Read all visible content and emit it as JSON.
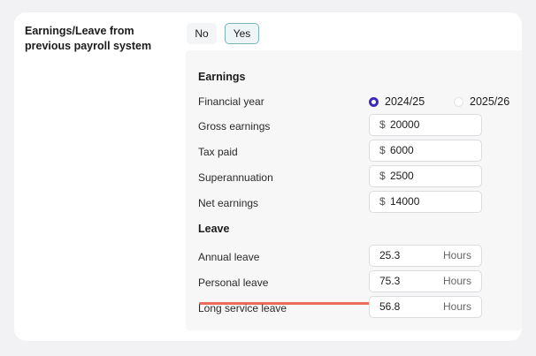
{
  "section": {
    "label": "Earnings/Leave from previous payroll system",
    "options": {
      "no": "No",
      "yes": "Yes"
    },
    "selected": "Yes"
  },
  "earnings": {
    "heading": "Earnings",
    "financial_year": {
      "label": "Financial year",
      "options": [
        "2024/25",
        "2025/26"
      ],
      "selected": "2024/25"
    },
    "currency_symbol": "$",
    "fields": [
      {
        "label": "Gross earnings",
        "value": "20000"
      },
      {
        "label": "Tax paid",
        "value": "6000"
      },
      {
        "label": "Superannuation",
        "value": "2500"
      },
      {
        "label": "Net earnings",
        "value": "14000"
      }
    ]
  },
  "leave": {
    "heading": "Leave",
    "unit": "Hours",
    "fields": [
      {
        "label": "Annual leave",
        "value": "25.3"
      },
      {
        "label": "Personal leave",
        "value": "75.3"
      },
      {
        "label": "Long service leave",
        "value": "56.8"
      }
    ]
  },
  "colors": {
    "radio_accent": "#3c2bb8",
    "yes_border": "#7bb3b9",
    "annotation_underline": "#ec6b5c"
  }
}
